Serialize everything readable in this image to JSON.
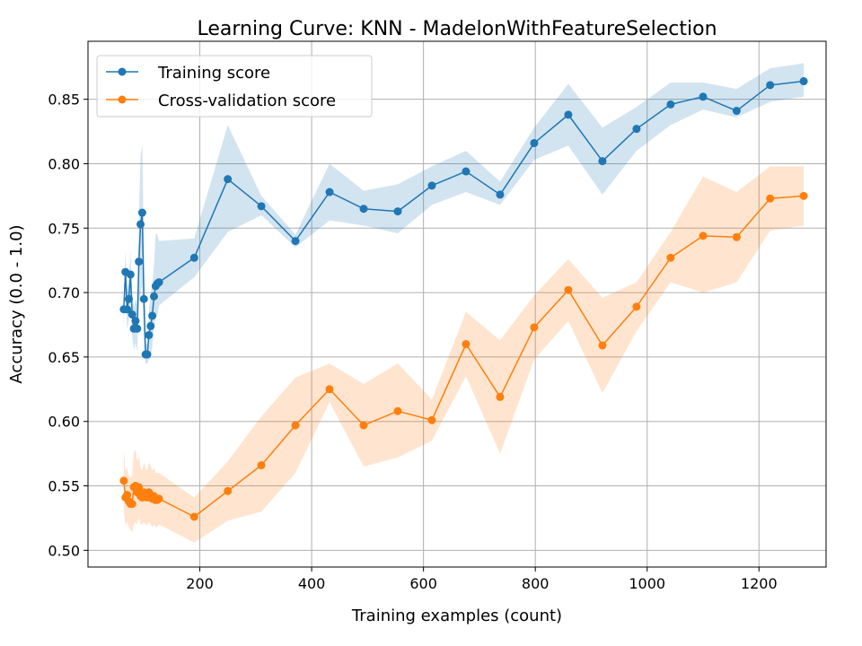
{
  "chart_data": {
    "type": "line",
    "title": "Learning Curve: KNN - MadelonWithFeatureSelection",
    "xlabel": "Training examples (count)",
    "ylabel": "Accuracy (0.0 - 1.0)",
    "xlim": [
      0,
      1320
    ],
    "ylim": [
      0.487,
      0.895
    ],
    "xticks": [
      200,
      400,
      600,
      800,
      1000,
      1200
    ],
    "yticks": [
      0.5,
      0.55,
      0.6,
      0.65,
      0.7,
      0.75,
      0.8,
      0.85
    ],
    "xtick_labels": [
      "200",
      "400",
      "600",
      "800",
      "1000",
      "1200"
    ],
    "ytick_labels": [
      "0.50",
      "0.55",
      "0.60",
      "0.65",
      "0.70",
      "0.75",
      "0.80",
      "0.85"
    ],
    "grid": true,
    "legend_position": "top-left",
    "series": [
      {
        "name": "Training score",
        "color": "#1f77b4",
        "x": [
          64,
          67,
          70,
          73,
          76,
          79,
          82,
          85,
          88,
          91,
          94,
          97,
          100,
          103,
          106,
          109,
          112,
          115,
          118,
          121,
          124,
          127,
          190,
          250,
          310,
          371,
          432,
          493,
          554,
          615,
          676,
          737,
          798,
          859,
          920,
          981,
          1042,
          1100,
          1160,
          1220,
          1280
        ],
        "values": [
          0.687,
          0.716,
          0.687,
          0.695,
          0.714,
          0.683,
          0.672,
          0.678,
          0.672,
          0.724,
          0.753,
          0.762,
          0.695,
          0.652,
          0.652,
          0.667,
          0.674,
          0.682,
          0.697,
          0.705,
          0.707,
          0.708,
          0.727,
          0.788,
          0.767,
          0.74,
          0.778,
          0.765,
          0.763,
          0.783,
          0.794,
          0.776,
          0.816,
          0.838,
          0.802,
          0.827,
          0.846,
          0.852,
          0.841,
          0.861,
          0.864
        ],
        "band_lower": [
          0.675,
          0.7,
          0.672,
          0.678,
          0.696,
          0.666,
          0.655,
          0.661,
          0.654,
          0.69,
          0.7,
          0.705,
          0.66,
          0.645,
          0.645,
          0.648,
          0.65,
          0.658,
          0.672,
          0.68,
          0.682,
          0.69,
          0.712,
          0.747,
          0.76,
          0.735,
          0.756,
          0.752,
          0.746,
          0.768,
          0.778,
          0.768,
          0.803,
          0.814,
          0.776,
          0.81,
          0.83,
          0.842,
          0.836,
          0.848,
          0.852
        ],
        "band_upper": [
          0.699,
          0.732,
          0.702,
          0.712,
          0.732,
          0.7,
          0.689,
          0.695,
          0.69,
          0.758,
          0.806,
          0.815,
          0.73,
          0.66,
          0.66,
          0.686,
          0.698,
          0.706,
          0.722,
          0.746,
          0.745,
          0.74,
          0.742,
          0.83,
          0.775,
          0.745,
          0.8,
          0.779,
          0.784,
          0.798,
          0.81,
          0.786,
          0.828,
          0.862,
          0.828,
          0.844,
          0.863,
          0.863,
          0.858,
          0.874,
          0.878
        ]
      },
      {
        "name": "Cross-validation score",
        "color": "#ff7f0e",
        "x": [
          64,
          67,
          70,
          73,
          76,
          79,
          82,
          85,
          88,
          91,
          94,
          97,
          100,
          103,
          106,
          109,
          112,
          115,
          118,
          121,
          124,
          127,
          190,
          250,
          310,
          371,
          432,
          493,
          554,
          615,
          676,
          737,
          798,
          859,
          920,
          981,
          1042,
          1100,
          1160,
          1220,
          1280
        ],
        "values": [
          0.554,
          0.541,
          0.543,
          0.538,
          0.536,
          0.536,
          0.549,
          0.55,
          0.545,
          0.549,
          0.542,
          0.541,
          0.545,
          0.542,
          0.541,
          0.545,
          0.543,
          0.54,
          0.542,
          0.539,
          0.539,
          0.54,
          0.526,
          0.546,
          0.566,
          0.597,
          0.625,
          0.597,
          0.608,
          0.601,
          0.66,
          0.619,
          0.673,
          0.702,
          0.659,
          0.689,
          0.727,
          0.744,
          0.743,
          0.773,
          0.775
        ],
        "band_lower": [
          0.53,
          0.52,
          0.522,
          0.518,
          0.516,
          0.514,
          0.52,
          0.522,
          0.52,
          0.525,
          0.52,
          0.52,
          0.522,
          0.52,
          0.52,
          0.522,
          0.52,
          0.518,
          0.52,
          0.518,
          0.518,
          0.52,
          0.506,
          0.523,
          0.53,
          0.56,
          0.615,
          0.565,
          0.572,
          0.585,
          0.635,
          0.575,
          0.648,
          0.678,
          0.622,
          0.67,
          0.708,
          0.7,
          0.708,
          0.748,
          0.752
        ],
        "band_upper": [
          0.578,
          0.562,
          0.564,
          0.558,
          0.556,
          0.558,
          0.576,
          0.578,
          0.57,
          0.573,
          0.564,
          0.562,
          0.568,
          0.564,
          0.562,
          0.568,
          0.566,
          0.562,
          0.564,
          0.56,
          0.56,
          0.56,
          0.541,
          0.569,
          0.604,
          0.634,
          0.645,
          0.629,
          0.645,
          0.617,
          0.685,
          0.663,
          0.698,
          0.726,
          0.696,
          0.708,
          0.747,
          0.79,
          0.778,
          0.798,
          0.798
        ]
      }
    ]
  }
}
